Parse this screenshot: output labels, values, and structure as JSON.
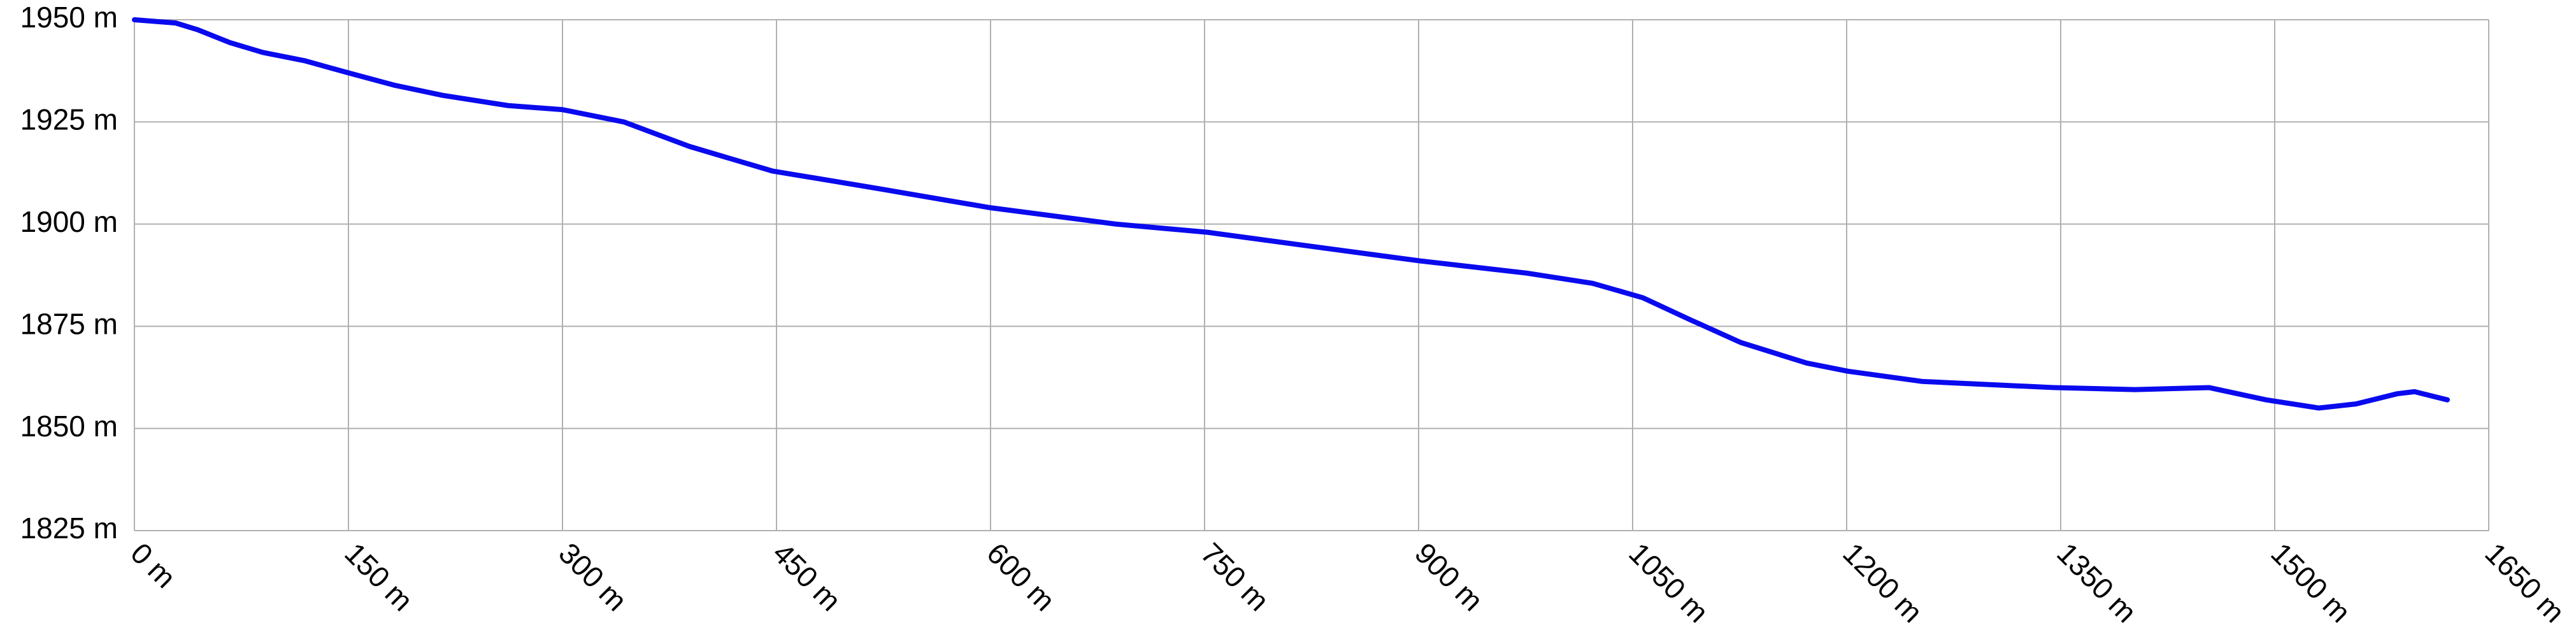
{
  "chart_data": {
    "type": "line",
    "x": [
      0,
      29,
      44,
      67,
      90,
      119,
      150,
      182,
      216,
      262,
      300,
      343,
      389,
      447,
      516,
      600,
      688,
      752,
      826,
      901,
      976,
      1022,
      1057,
      1091,
      1126,
      1172,
      1201,
      1253,
      1345,
      1402,
      1454,
      1494,
      1531,
      1557,
      1586,
      1598,
      1621
    ],
    "series": [
      {
        "color": "#0a0aee",
        "values": [
          1950,
          1949.2,
          1947.6,
          1944.4,
          1942,
          1940,
          1937,
          1934,
          1931.5,
          1929,
          1928,
          1925,
          1919,
          1913,
          1909,
          1904,
          1900,
          1898,
          1894.5,
          1891,
          1888,
          1885.5,
          1882,
          1876.5,
          1871,
          1866,
          1864,
          1861.5,
          1860,
          1859.5,
          1860,
          1857,
          1855,
          1856,
          1858.5,
          1859,
          1857
        ]
      }
    ],
    "xlim": [
      0,
      1650
    ],
    "ylim": [
      1825,
      1950
    ],
    "xticks": [
      {
        "value": 0,
        "label": "0 m"
      },
      {
        "value": 150,
        "label": "150 m"
      },
      {
        "value": 300,
        "label": "300 m"
      },
      {
        "value": 450,
        "label": "450 m"
      },
      {
        "value": 600,
        "label": "600 m"
      },
      {
        "value": 750,
        "label": "750 m"
      },
      {
        "value": 900,
        "label": "900 m"
      },
      {
        "value": 1050,
        "label": "1050 m"
      },
      {
        "value": 1200,
        "label": "1200 m"
      },
      {
        "value": 1350,
        "label": "1350 m"
      },
      {
        "value": 1500,
        "label": "1500 m"
      },
      {
        "value": 1650,
        "label": "1650 m"
      }
    ],
    "yticks": [
      {
        "value": 1825,
        "label": "1825 m"
      },
      {
        "value": 1850,
        "label": "1850 m"
      },
      {
        "value": 1875,
        "label": "1875 m"
      },
      {
        "value": 1900,
        "label": "1900 m"
      },
      {
        "value": 1925,
        "label": "1925 m"
      },
      {
        "value": 1950,
        "label": "1950 m"
      }
    ],
    "grid": true
  }
}
